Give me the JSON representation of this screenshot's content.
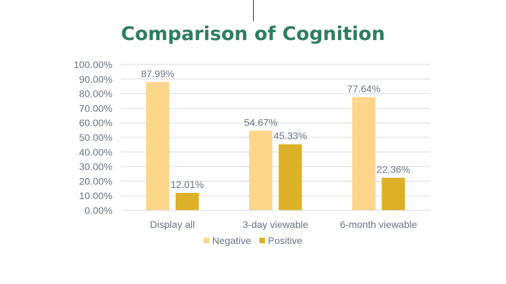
{
  "title": "Comparison of Cognition",
  "colors": {
    "title": "#2e7d61",
    "negative": "#fdd68c",
    "positive": "#ddb127",
    "grid": "#d9d9d9",
    "text": "#6b7386",
    "divider": "#1f2a44"
  },
  "chart_data": {
    "type": "bar",
    "title": "Comparison of Cognition",
    "categories": [
      "Display all",
      "3-day viewable",
      "6-month viewable"
    ],
    "series": [
      {
        "name": "Negative",
        "values": [
          87.99,
          54.67,
          77.64
        ],
        "labels": [
          "87.99%",
          "54.67%",
          "77.64%"
        ]
      },
      {
        "name": "Positive",
        "values": [
          12.01,
          45.33,
          22.36
        ],
        "labels": [
          "12.01%",
          "45.33%",
          "22.36%"
        ]
      }
    ],
    "ylim": [
      0,
      100
    ],
    "yticks": [
      "0.00%",
      "10.00%",
      "20.00%",
      "30.00%",
      "40.00%",
      "50.00%",
      "60.00%",
      "70.00%",
      "80.00%",
      "90.00%",
      "100.00%"
    ],
    "grid": true,
    "legend_position": "bottom"
  }
}
